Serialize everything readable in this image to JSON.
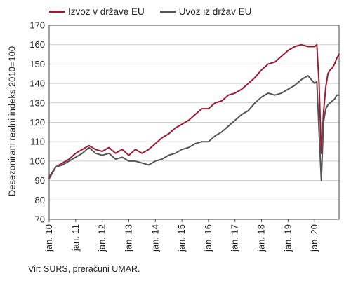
{
  "chart_data": {
    "type": "line",
    "ylabel": "Desezonirani realni indeks 2010=100",
    "ylim": [
      70,
      170
    ],
    "yticks": [
      70,
      80,
      90,
      100,
      110,
      120,
      130,
      140,
      150,
      160,
      170
    ],
    "xlim": [
      2010.0,
      2020.92
    ],
    "xtick_positions": [
      2010,
      2011,
      2012,
      2013,
      2014,
      2015,
      2016,
      2017,
      2018,
      2019,
      2020
    ],
    "xtick_labels": [
      "jan. 10",
      "jan. 11",
      "jan. 12",
      "jan. 13",
      "jan. 14",
      "jan. 15",
      "jan. 16",
      "jan. 17",
      "jan. 18",
      "jan. 19",
      "jan. 20"
    ],
    "grid": "horizontal",
    "legend_position": "top-left",
    "x": [
      2010.0,
      2010.25,
      2010.5,
      2010.75,
      2011.0,
      2011.25,
      2011.5,
      2011.75,
      2012.0,
      2012.25,
      2012.5,
      2012.75,
      2013.0,
      2013.25,
      2013.5,
      2013.75,
      2014.0,
      2014.25,
      2014.5,
      2014.75,
      2015.0,
      2015.25,
      2015.5,
      2015.75,
      2016.0,
      2016.25,
      2016.5,
      2016.75,
      2017.0,
      2017.25,
      2017.5,
      2017.75,
      2018.0,
      2018.25,
      2018.5,
      2018.75,
      2019.0,
      2019.25,
      2019.5,
      2019.75,
      2020.0,
      2020.083,
      2020.167,
      2020.25,
      2020.333,
      2020.417,
      2020.5,
      2020.583,
      2020.667,
      2020.75,
      2020.833,
      2020.917
    ],
    "series": [
      {
        "name": "Izvoz v države EU",
        "color": "#9b1b30",
        "values": [
          91,
          97,
          99,
          101,
          104,
          106,
          108,
          106,
          105,
          107,
          104,
          106,
          103,
          106,
          104,
          106,
          109,
          112,
          114,
          117,
          119,
          121,
          124,
          127,
          127,
          130,
          131,
          134,
          135,
          137,
          140,
          143,
          147,
          150,
          151,
          154,
          157,
          159,
          160,
          159,
          159,
          160,
          140,
          104,
          125,
          138,
          145,
          147,
          148,
          150,
          153,
          155
        ]
      },
      {
        "name": "Uvoz iz držav EU",
        "color": "#555555",
        "values": [
          92,
          97,
          98,
          100,
          102,
          104,
          107,
          104,
          103,
          104,
          101,
          102,
          100,
          100,
          99,
          98,
          100,
          101,
          103,
          104,
          106,
          107,
          109,
          110,
          110,
          113,
          115,
          118,
          121,
          124,
          126,
          130,
          133,
          135,
          134,
          135,
          137,
          139,
          142,
          144,
          140,
          141,
          115,
          90,
          120,
          127,
          129,
          130,
          131,
          132,
          134,
          134
        ]
      }
    ]
  },
  "source_text": "Vir: SURS, preračuni UMAR."
}
